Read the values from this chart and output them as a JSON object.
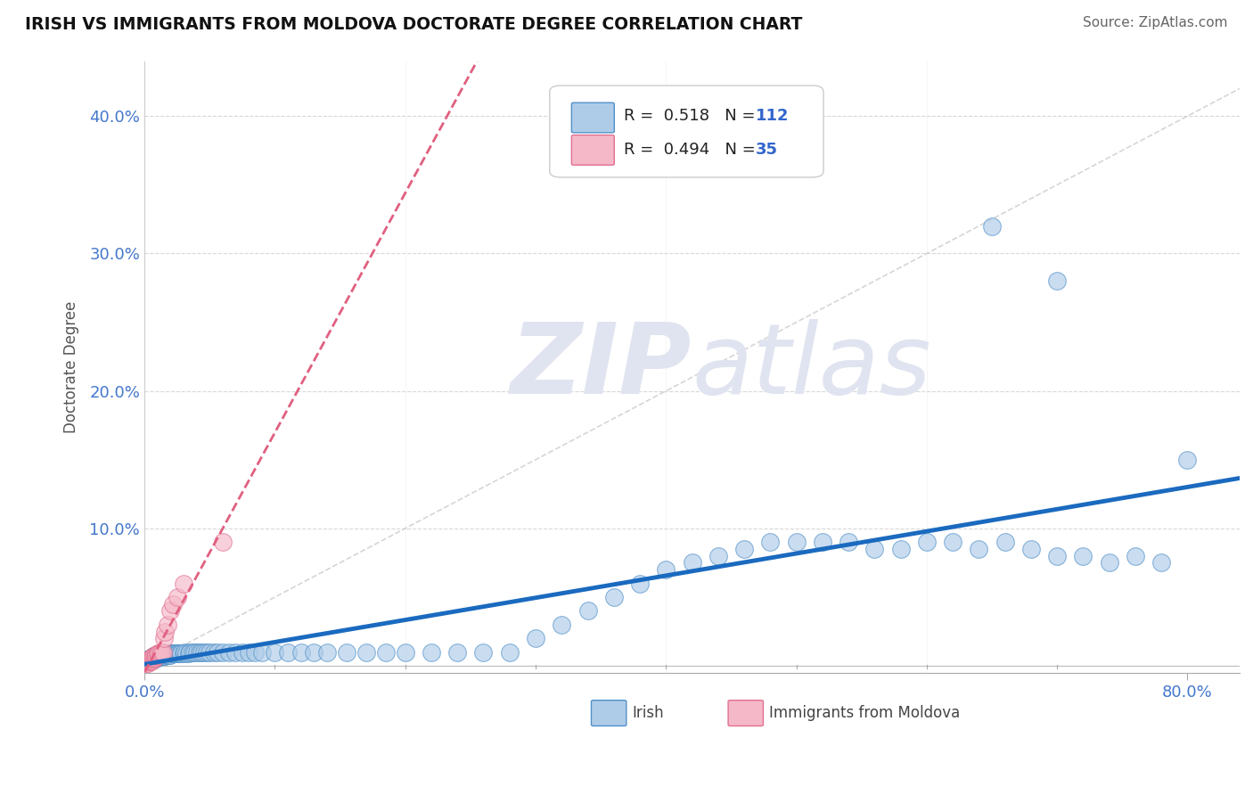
{
  "title": "IRISH VS IMMIGRANTS FROM MOLDOVA DOCTORATE DEGREE CORRELATION CHART",
  "source": "Source: ZipAtlas.com",
  "ylabel": "Doctorate Degree",
  "xlim": [
    0.0,
    0.84
  ],
  "ylim": [
    -0.005,
    0.44
  ],
  "ytick_vals": [
    0.0,
    0.1,
    0.2,
    0.3,
    0.4
  ],
  "ytick_labels": [
    "",
    "10.0%",
    "20.0%",
    "30.0%",
    "40.0%"
  ],
  "xtick_vals": [
    0.0,
    0.8
  ],
  "xtick_labels": [
    "0.0%",
    "80.0%"
  ],
  "irish_R": 0.518,
  "irish_N": 112,
  "moldova_R": 0.494,
  "moldova_N": 35,
  "irish_color": "#aecce8",
  "irish_edge_color": "#5090c8",
  "irish_line_color": "#1a6abf",
  "moldova_color": "#f5b8c8",
  "moldova_edge_color": "#e07090",
  "moldova_line_color": "#e06080",
  "grid_color": "#d8d8d8",
  "ref_line_color": "#cccccc",
  "watermark_color": "#e0e4f0",
  "legend_label_irish": "Irish",
  "legend_label_moldova": "Immigrants from Moldova",
  "irish_x": [
    0.002,
    0.003,
    0.004,
    0.004,
    0.005,
    0.005,
    0.005,
    0.006,
    0.006,
    0.006,
    0.007,
    0.007,
    0.007,
    0.008,
    0.008,
    0.008,
    0.009,
    0.009,
    0.009,
    0.01,
    0.01,
    0.01,
    0.011,
    0.011,
    0.012,
    0.012,
    0.013,
    0.013,
    0.014,
    0.014,
    0.015,
    0.015,
    0.016,
    0.016,
    0.017,
    0.017,
    0.018,
    0.018,
    0.019,
    0.02,
    0.02,
    0.021,
    0.022,
    0.023,
    0.024,
    0.025,
    0.026,
    0.027,
    0.028,
    0.03,
    0.031,
    0.032,
    0.034,
    0.035,
    0.037,
    0.038,
    0.04,
    0.042,
    0.044,
    0.046,
    0.048,
    0.05,
    0.053,
    0.056,
    0.06,
    0.065,
    0.07,
    0.075,
    0.08,
    0.085,
    0.09,
    0.1,
    0.11,
    0.12,
    0.13,
    0.14,
    0.155,
    0.17,
    0.185,
    0.2,
    0.22,
    0.24,
    0.26,
    0.28,
    0.3,
    0.32,
    0.34,
    0.36,
    0.38,
    0.4,
    0.42,
    0.44,
    0.46,
    0.48,
    0.5,
    0.52,
    0.54,
    0.56,
    0.58,
    0.6,
    0.62,
    0.64,
    0.66,
    0.68,
    0.7,
    0.72,
    0.74,
    0.76,
    0.78,
    0.8,
    0.65,
    0.7
  ],
  "irish_y": [
    0.003,
    0.004,
    0.003,
    0.005,
    0.004,
    0.005,
    0.006,
    0.004,
    0.005,
    0.006,
    0.005,
    0.006,
    0.007,
    0.005,
    0.006,
    0.007,
    0.006,
    0.007,
    0.008,
    0.006,
    0.007,
    0.008,
    0.007,
    0.008,
    0.007,
    0.008,
    0.007,
    0.008,
    0.007,
    0.009,
    0.007,
    0.008,
    0.007,
    0.009,
    0.008,
    0.009,
    0.008,
    0.009,
    0.008,
    0.008,
    0.009,
    0.009,
    0.009,
    0.009,
    0.009,
    0.009,
    0.009,
    0.009,
    0.009,
    0.009,
    0.01,
    0.009,
    0.009,
    0.01,
    0.01,
    0.01,
    0.01,
    0.01,
    0.01,
    0.01,
    0.01,
    0.01,
    0.01,
    0.01,
    0.01,
    0.01,
    0.01,
    0.01,
    0.01,
    0.01,
    0.01,
    0.01,
    0.01,
    0.01,
    0.01,
    0.01,
    0.01,
    0.01,
    0.01,
    0.01,
    0.01,
    0.01,
    0.01,
    0.01,
    0.02,
    0.03,
    0.04,
    0.05,
    0.06,
    0.07,
    0.075,
    0.08,
    0.085,
    0.09,
    0.09,
    0.09,
    0.09,
    0.085,
    0.085,
    0.09,
    0.09,
    0.085,
    0.09,
    0.085,
    0.08,
    0.08,
    0.075,
    0.08,
    0.075,
    0.15,
    0.32,
    0.28
  ],
  "moldova_x": [
    0.002,
    0.002,
    0.003,
    0.003,
    0.003,
    0.004,
    0.004,
    0.004,
    0.005,
    0.005,
    0.005,
    0.006,
    0.006,
    0.006,
    0.007,
    0.007,
    0.007,
    0.008,
    0.008,
    0.009,
    0.009,
    0.01,
    0.01,
    0.011,
    0.012,
    0.013,
    0.014,
    0.015,
    0.016,
    0.018,
    0.02,
    0.022,
    0.025,
    0.03,
    0.06
  ],
  "moldova_y": [
    0.002,
    0.003,
    0.002,
    0.003,
    0.004,
    0.003,
    0.004,
    0.005,
    0.003,
    0.004,
    0.005,
    0.004,
    0.005,
    0.006,
    0.005,
    0.006,
    0.007,
    0.006,
    0.007,
    0.007,
    0.008,
    0.008,
    0.009,
    0.009,
    0.009,
    0.01,
    0.01,
    0.02,
    0.025,
    0.03,
    0.04,
    0.045,
    0.05,
    0.06,
    0.09
  ]
}
